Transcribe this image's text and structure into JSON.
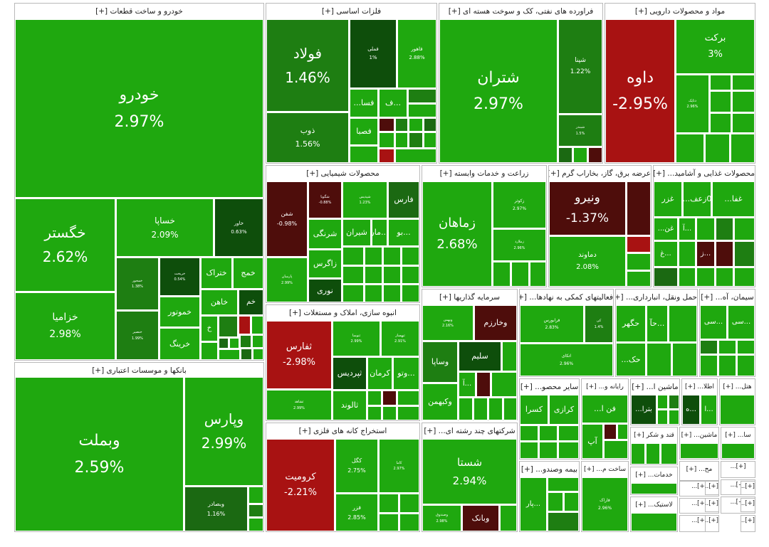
{
  "colors": {
    "strong_pos": "#1fa80f",
    "pos_alt": "#229b13",
    "mid_pos": "#1e7e12",
    "dark_pos": "#1b6912",
    "very_dark_pos": "#0e4e0b",
    "neg": "#a81212",
    "dark_neg": "#4e0d0b"
  },
  "chart_data": {
    "type": "treemap",
    "title": "",
    "sectors": [
      {
        "name": "خودرو و ساخت قطعات",
        "title": "خودرو و ساخت قطعات [+]",
        "stocks": [
          {
            "symbol": "خودرو",
            "change": "2.97%",
            "value": 2.97
          },
          {
            "symbol": "خگستر",
            "change": "2.62%",
            "value": 2.62
          },
          {
            "symbol": "خزامیا",
            "change": "2.98%",
            "value": 2.98
          },
          {
            "symbol": "خساپا",
            "change": "2.09%",
            "value": 2.09
          },
          {
            "symbol": "خاور",
            "change": "0.63%",
            "value": 0.63
          },
          {
            "symbol": "خمحور",
            "change": "1.38%",
            "value": 1.38
          },
          {
            "symbol": "خریخت",
            "change": "0.54%",
            "value": 0.54
          },
          {
            "symbol": "ختراک",
            "change": "",
            "value": 2.5
          },
          {
            "symbol": "خمج",
            "change": "",
            "value": 2.2
          },
          {
            "symbol": "خموتور",
            "change": "",
            "value": 2.4
          },
          {
            "symbol": "خاهن",
            "change": "",
            "value": 2.3
          },
          {
            "symbol": "خم",
            "change": "",
            "value": 0.8
          },
          {
            "symbol": "خنصیر",
            "change": "1.99%",
            "value": 1.99
          },
          {
            "symbol": "خرینگ",
            "change": "",
            "value": 2.6
          },
          {
            "symbol": "خ",
            "change": "",
            "value": 2.1
          }
        ]
      },
      {
        "name": "بانکها و موسسات اعتباری",
        "title": "بانکها و موسسات اعتباری [+]",
        "stocks": [
          {
            "symbol": "وبملت",
            "change": "2.59%",
            "value": 2.59
          },
          {
            "symbol": "وپارس",
            "change": "2.99%",
            "value": 2.99
          },
          {
            "symbol": "وبصادر",
            "change": "1.16%",
            "value": 1.16
          }
        ]
      },
      {
        "name": "فلزات اساسی",
        "title": "فلزات اساسی [+]",
        "stocks": [
          {
            "symbol": "فولاد",
            "change": "1.46%",
            "value": 1.46
          },
          {
            "symbol": "ذوب",
            "change": "1.56%",
            "value": 1.56
          },
          {
            "symbol": "فملی",
            "change": "1%",
            "value": 1.0
          },
          {
            "symbol": "فاهور",
            "change": "2.88%",
            "value": 2.88
          },
          {
            "symbol": "فسا...",
            "change": "",
            "value": 2.4
          },
          {
            "symbol": "...ف",
            "change": "",
            "value": 2.4
          },
          {
            "symbol": "فصبا",
            "change": "",
            "value": 2.5
          }
        ]
      },
      {
        "name": "فراورده های نفتی، کک و سوخت هسته ای",
        "title": "فراورده های نفتی، کک و سوخت هسته ای [+]",
        "stocks": [
          {
            "symbol": "شتران",
            "change": "2.97%",
            "value": 2.97
          },
          {
            "symbol": "شپنا",
            "change": "1.22%",
            "value": 1.22
          },
          {
            "symbol": "شبندر",
            "change": "1.5%",
            "value": 1.5
          }
        ]
      },
      {
        "name": "مواد و محصولات دارویی",
        "title": "مواد و محصولات دارویی [+]",
        "stocks": [
          {
            "symbol": "داوه",
            "change": "-2.95%",
            "value": -2.95
          },
          {
            "symbol": "برکت",
            "change": "3%",
            "value": 3.0
          },
          {
            "symbol": "دتاپک",
            "change": "2.96%",
            "value": 2.96
          }
        ]
      },
      {
        "name": "محصولات شیمیایی",
        "title": "محصولات شیمیایی [+]",
        "stocks": [
          {
            "symbol": "شفن",
            "change": "-0.98%",
            "value": -0.98
          },
          {
            "symbol": "شگویا",
            "change": "-0.88%",
            "value": -0.88
          },
          {
            "symbol": "شپدیس",
            "change": "1.23%",
            "value": 1.23
          },
          {
            "symbol": "فارس",
            "change": "",
            "value": 1.0
          },
          {
            "symbol": "شرنگی",
            "change": "",
            "value": 2.4
          },
          {
            "symbol": "...بو",
            "change": "",
            "value": 2.4
          },
          {
            "symbol": "شیران",
            "change": "",
            "value": 2.5
          },
          {
            "symbol": "...مار",
            "change": "",
            "value": 2.5
          },
          {
            "symbol": "زاگرس",
            "change": "",
            "value": 2.5
          },
          {
            "symbol": "نوری",
            "change": "",
            "value": 0.9
          },
          {
            "symbol": "پارسان",
            "change": "2.99%",
            "value": 2.99
          }
        ]
      },
      {
        "name": "زراعت و خدمات وابسته",
        "title": "زراعت و خدمات وابسته [+]",
        "stocks": [
          {
            "symbol": "زماهان",
            "change": "2.68%",
            "value": 2.68
          },
          {
            "symbol": "زکوثر",
            "change": "2.97%",
            "value": 2.97
          },
          {
            "symbol": "زملارد",
            "change": "2.96%",
            "value": 2.96
          }
        ]
      },
      {
        "name": "عرضه برق، گاز، بخاراب گرم",
        "title": "عرضه برق، گاز، بخاراب گرم [+]",
        "stocks": [
          {
            "symbol": "ونیرو",
            "change": "-1.37%",
            "value": -1.37
          },
          {
            "symbol": "دماوند",
            "change": "2.08%",
            "value": 2.08
          }
        ]
      },
      {
        "name": "محصولات غذایی و آشامید",
        "title": "محصولات غذایی و آشامید... [+]",
        "stocks": [
          {
            "symbol": "غزر",
            "change": "",
            "value": 2.3
          },
          {
            "symbol": "0زعف...",
            "change": "",
            "value": 2.4
          },
          {
            "symbol": "غفا...",
            "change": "",
            "value": 2.4
          },
          {
            "symbol": "...آ",
            "change": "",
            "value": 2.2
          },
          {
            "symbol": "غن...",
            "change": "",
            "value": 2.2
          },
          {
            "symbol": "...غ",
            "change": "",
            "value": 2.2
          },
          {
            "symbol": "...ز",
            "change": "",
            "value": -0.9
          }
        ]
      },
      {
        "name": "انبوه سازی، املاک و مستغلات",
        "title": "انبوه سازی، املاک و مستغلات [+]",
        "stocks": [
          {
            "symbol": "ثفارس",
            "change": "-2.98%",
            "value": -2.98
          },
          {
            "symbol": "ثشاهد",
            "change": "2.99%",
            "value": 2.99
          },
          {
            "symbol": "ثنوسا",
            "change": "2.99%",
            "value": 2.99
          },
          {
            "symbol": "ثبهساز",
            "change": "2.91%",
            "value": 2.91
          },
          {
            "symbol": "ثپردیس",
            "change": "",
            "value": 0.9
          },
          {
            "symbol": "کرمان",
            "change": "",
            "value": 2.5
          },
          {
            "symbol": "...وتو",
            "change": "",
            "value": 2.5
          },
          {
            "symbol": "ثالوند",
            "change": "",
            "value": 2.4
          }
        ]
      },
      {
        "name": "سرمایه گذاریها",
        "title": "سرمایه گذاریها [+]",
        "stocks": [
          {
            "symbol": "وبهمن",
            "change": "2.16%",
            "value": 2.16
          },
          {
            "symbol": "وخارزم",
            "change": "",
            "value": -0.9
          },
          {
            "symbol": "وساپا",
            "change": "",
            "value": 2.4
          },
          {
            "symbol": "سلیم",
            "change": "",
            "value": 0.9
          },
          {
            "symbol": "...آ",
            "change": "",
            "value": 2.3
          },
          {
            "symbol": "وکبهمن",
            "change": "",
            "value": 2.5
          }
        ]
      },
      {
        "name": "فعالیتهای کمکی به نهادها",
        "title": "فعالیتهای کمکی به نهادها... [+]",
        "stocks": [
          {
            "symbol": "فرابورس",
            "change": "2.83%",
            "value": 2.83
          },
          {
            "symbol": "کی",
            "change": "1.4%",
            "value": 1.4
          },
          {
            "symbol": "اتکای",
            "change": "2.96%",
            "value": 2.96
          }
        ]
      },
      {
        "name": "حمل ونقل، انبارداری",
        "title": "حمل ونقل، انبارداری... [+]",
        "stocks": [
          {
            "symbol": "حگهر",
            "change": "",
            "value": 2.4
          },
          {
            "symbol": "...حآ",
            "change": "",
            "value": 2.3
          },
          {
            "symbol": "حک...",
            "change": "",
            "value": 2.3
          }
        ]
      },
      {
        "name": "سیمان، آهک",
        "title": "سیمان، آه... [+]",
        "stocks": [
          {
            "symbol": "...سی",
            "change": "",
            "value": 2.3
          },
          {
            "symbol": "...سی",
            "change": "",
            "value": 2.3
          }
        ]
      },
      {
        "name": "استخراج کانه های فلزی",
        "title": "استخراج کانه های فلزی [+]",
        "stocks": [
          {
            "symbol": "کرومیت",
            "change": "-2.21%",
            "value": -2.21
          },
          {
            "symbol": "کگل",
            "change": "2.75%",
            "value": 2.75
          },
          {
            "symbol": "کاما",
            "change": "2.97%",
            "value": 2.97
          },
          {
            "symbol": "فزر",
            "change": "2.85%",
            "value": 2.85
          }
        ]
      },
      {
        "name": "شرکتهای چند رشته ای",
        "title": "شرکتهای چند رشته ای... [+]",
        "stocks": [
          {
            "symbol": "شستا",
            "change": "2.94%",
            "value": 2.94
          },
          {
            "symbol": "وصندوق",
            "change": "2.98%",
            "value": 2.98
          },
          {
            "symbol": "وبانک",
            "change": "",
            "value": -1.0
          }
        ]
      },
      {
        "name": "سایر محصولات",
        "title": "سایر محصو... [+]",
        "stocks": [
          {
            "symbol": "کسرا",
            "change": "",
            "value": 2.4
          },
          {
            "symbol": "کرازی",
            "change": "",
            "value": 2.4
          }
        ]
      },
      {
        "name": "رایانه و",
        "title": "رایانه و... [+]",
        "stocks": [
          {
            "symbol": "فن ا...",
            "change": "",
            "value": 2.4
          },
          {
            "symbol": "آپ",
            "change": "",
            "value": 2.4
          }
        ]
      },
      {
        "name": "ماشین آلات",
        "title": "ماشین ا... [+]",
        "stocks": [
          {
            "symbol": "بترا...",
            "change": "",
            "value": 1.0
          }
        ]
      },
      {
        "name": "اطلاعات",
        "title": "اطلا... [+]",
        "stocks": [
          {
            "symbol": "...ه",
            "change": "",
            "value": 2.4
          },
          {
            "symbol": "...ا",
            "change": "",
            "value": 2.4
          }
        ]
      },
      {
        "name": "هتل",
        "title": "هتل... [+]",
        "stocks": []
      },
      {
        "name": "بیمه وصندوق",
        "title": "بیمه وصندو... [+]",
        "stocks": [
          {
            "symbol": "...پار",
            "change": "",
            "value": 2.4
          }
        ]
      },
      {
        "name": "ساخت محصولات",
        "title": "ساخت م... [+]",
        "stocks": [
          {
            "symbol": "فاراک",
            "change": "2.96%",
            "value": 2.96
          }
        ]
      },
      {
        "name": "قند و شکر",
        "title": "قند و شکر [+]",
        "stocks": []
      },
      {
        "name": "ماشین آلات برقی",
        "title": "ماشین... [+]",
        "stocks": []
      },
      {
        "name": "سا",
        "title": "سا... [+]",
        "stocks": []
      },
      {
        "name": "خدمات",
        "title": "خدمات... [+]",
        "stocks": []
      },
      {
        "name": "مح",
        "title": "مح... [+]",
        "stocks": []
      },
      {
        "name": "لاستیک",
        "title": "لاستیک... [+]",
        "stocks": []
      }
    ]
  }
}
